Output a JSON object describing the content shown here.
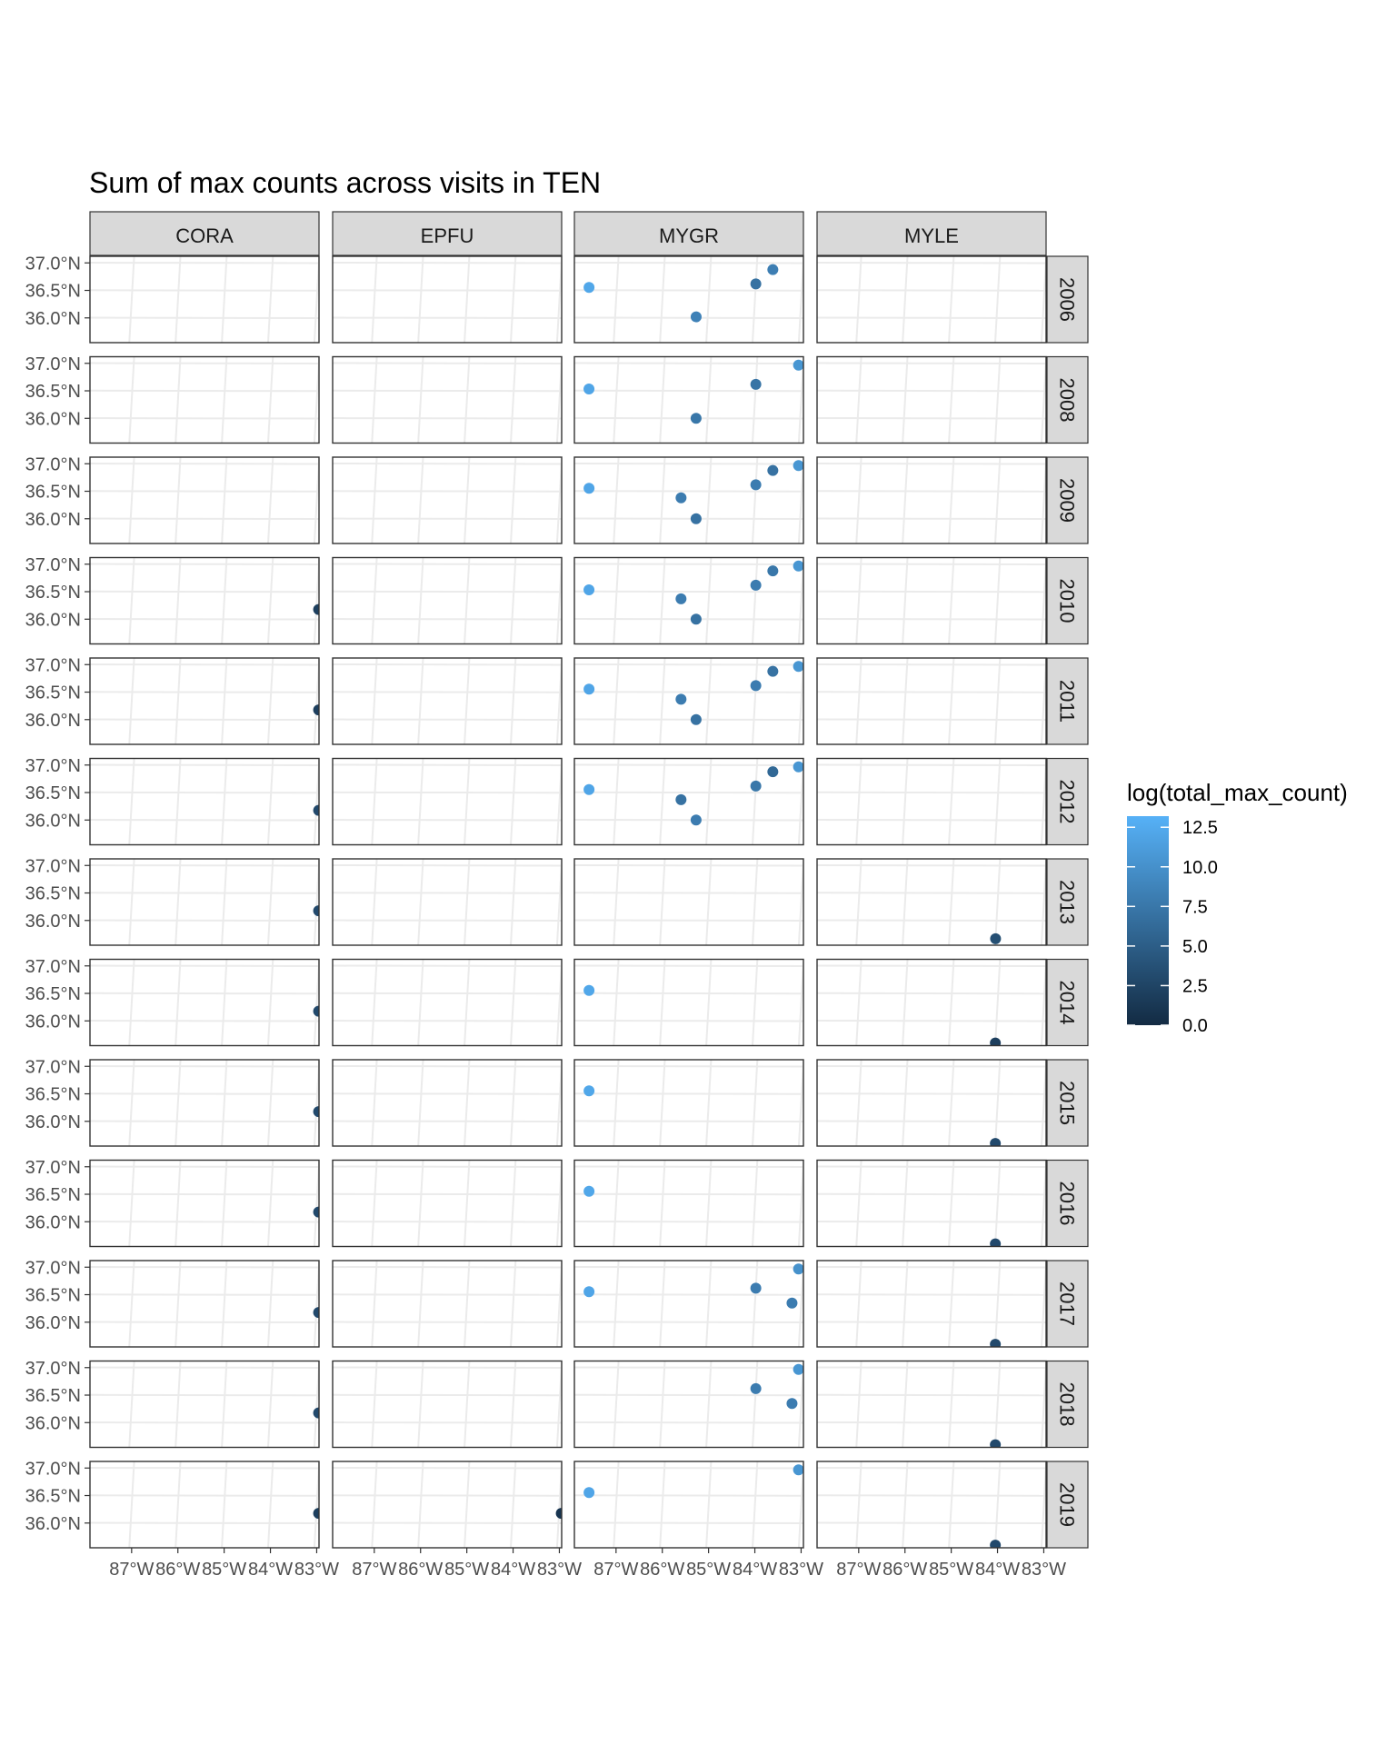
{
  "chart_data": {
    "type": "scatter",
    "title": "Sum of max counts across visits in TEN",
    "facet_columns": [
      "CORA",
      "EPFU",
      "MYGR",
      "MYLE"
    ],
    "facet_rows": [
      "2006",
      "2008",
      "2009",
      "2010",
      "2011",
      "2012",
      "2013",
      "2014",
      "2015",
      "2016",
      "2017",
      "2018",
      "2019"
    ],
    "x_ticks": [
      {
        "value": -87,
        "label": "87°W"
      },
      {
        "value": -86,
        "label": "86°W"
      },
      {
        "value": -85,
        "label": "85°W"
      },
      {
        "value": -84,
        "label": "84°W"
      },
      {
        "value": -83,
        "label": "83°W"
      }
    ],
    "y_ticks": [
      {
        "value": 37.0,
        "label": "37.0°N"
      },
      {
        "value": 36.5,
        "label": "36.5°N"
      },
      {
        "value": 36.0,
        "label": "36.0°N"
      }
    ],
    "xlim": [
      -87.9,
      -82.95
    ],
    "ylim": [
      35.55,
      37.12
    ],
    "legend": {
      "title": "log(total_max_count)",
      "position": "right",
      "range": [
        0,
        13.2
      ],
      "ticks": [
        {
          "value": 12.5,
          "label": "12.5"
        },
        {
          "value": 10.0,
          "label": "10.0"
        },
        {
          "value": 7.5,
          "label": "7.5"
        },
        {
          "value": 5.0,
          "label": "5.0"
        },
        {
          "value": 2.5,
          "label": "2.5"
        },
        {
          "value": 0.0,
          "label": "0.0"
        }
      ],
      "color_low": "#132B43",
      "color_high": "#56B1F7"
    },
    "grid": true,
    "points": [
      {
        "species": "MYGR",
        "year": "2006",
        "lon": -87.6,
        "lat": 36.55,
        "value": 12.2
      },
      {
        "species": "MYGR",
        "year": "2006",
        "lon": -85.25,
        "lat": 36.02,
        "value": 8.5
      },
      {
        "species": "MYGR",
        "year": "2006",
        "lon": -84.0,
        "lat": 36.62,
        "value": 7.0
      },
      {
        "species": "MYGR",
        "year": "2006",
        "lon": -83.65,
        "lat": 36.88,
        "value": 8.2
      },
      {
        "species": "MYGR",
        "year": "2008",
        "lon": -87.6,
        "lat": 36.53,
        "value": 12.0
      },
      {
        "species": "MYGR",
        "year": "2008",
        "lon": -85.25,
        "lat": 36.0,
        "value": 7.5
      },
      {
        "species": "MYGR",
        "year": "2008",
        "lon": -84.0,
        "lat": 36.62,
        "value": 7.2
      },
      {
        "species": "MYGR",
        "year": "2008",
        "lon": -83.1,
        "lat": 36.97,
        "value": 10.5
      },
      {
        "species": "MYGR",
        "year": "2009",
        "lon": -87.6,
        "lat": 36.55,
        "value": 12.0
      },
      {
        "species": "MYGR",
        "year": "2009",
        "lon": -85.6,
        "lat": 36.38,
        "value": 8.0
      },
      {
        "species": "MYGR",
        "year": "2009",
        "lon": -85.25,
        "lat": 36.0,
        "value": 7.0
      },
      {
        "species": "MYGR",
        "year": "2009",
        "lon": -84.0,
        "lat": 36.62,
        "value": 8.0
      },
      {
        "species": "MYGR",
        "year": "2009",
        "lon": -83.65,
        "lat": 36.88,
        "value": 7.0
      },
      {
        "species": "MYGR",
        "year": "2009",
        "lon": -83.1,
        "lat": 36.97,
        "value": 10.5
      },
      {
        "species": "CORA",
        "year": "2010",
        "lon": -82.95,
        "lat": 36.18,
        "value": 2.0
      },
      {
        "species": "MYGR",
        "year": "2010",
        "lon": -87.6,
        "lat": 36.53,
        "value": 12.0
      },
      {
        "species": "MYGR",
        "year": "2010",
        "lon": -85.6,
        "lat": 36.37,
        "value": 8.0
      },
      {
        "species": "MYGR",
        "year": "2010",
        "lon": -85.25,
        "lat": 36.0,
        "value": 7.0
      },
      {
        "species": "MYGR",
        "year": "2010",
        "lon": -84.0,
        "lat": 36.62,
        "value": 8.0
      },
      {
        "species": "MYGR",
        "year": "2010",
        "lon": -83.65,
        "lat": 36.88,
        "value": 7.5
      },
      {
        "species": "MYGR",
        "year": "2010",
        "lon": -83.1,
        "lat": 36.97,
        "value": 10.5
      },
      {
        "species": "CORA",
        "year": "2011",
        "lon": -82.95,
        "lat": 36.18,
        "value": 2.0
      },
      {
        "species": "MYGR",
        "year": "2011",
        "lon": -87.6,
        "lat": 36.55,
        "value": 12.0
      },
      {
        "species": "MYGR",
        "year": "2011",
        "lon": -85.6,
        "lat": 36.37,
        "value": 8.0
      },
      {
        "species": "MYGR",
        "year": "2011",
        "lon": -85.25,
        "lat": 36.0,
        "value": 7.0
      },
      {
        "species": "MYGR",
        "year": "2011",
        "lon": -84.0,
        "lat": 36.62,
        "value": 8.0
      },
      {
        "species": "MYGR",
        "year": "2011",
        "lon": -83.65,
        "lat": 36.88,
        "value": 7.0
      },
      {
        "species": "MYGR",
        "year": "2011",
        "lon": -83.1,
        "lat": 36.97,
        "value": 10.5
      },
      {
        "species": "CORA",
        "year": "2012",
        "lon": -82.95,
        "lat": 36.18,
        "value": 3.0
      },
      {
        "species": "MYGR",
        "year": "2012",
        "lon": -87.6,
        "lat": 36.55,
        "value": 12.0
      },
      {
        "species": "MYGR",
        "year": "2012",
        "lon": -85.6,
        "lat": 36.37,
        "value": 7.0
      },
      {
        "species": "MYGR",
        "year": "2012",
        "lon": -85.25,
        "lat": 36.0,
        "value": 8.0
      },
      {
        "species": "MYGR",
        "year": "2012",
        "lon": -84.0,
        "lat": 36.62,
        "value": 7.5
      },
      {
        "species": "MYGR",
        "year": "2012",
        "lon": -83.65,
        "lat": 36.88,
        "value": 6.0
      },
      {
        "species": "MYGR",
        "year": "2012",
        "lon": -83.1,
        "lat": 36.97,
        "value": 10.5
      },
      {
        "species": "CORA",
        "year": "2013",
        "lon": -82.95,
        "lat": 36.18,
        "value": 3.0
      },
      {
        "species": "MYLE",
        "year": "2013",
        "lon": -84.0,
        "lat": 35.67,
        "value": 3.5
      },
      {
        "species": "CORA",
        "year": "2014",
        "lon": -82.95,
        "lat": 36.18,
        "value": 3.0
      },
      {
        "species": "MYGR",
        "year": "2014",
        "lon": -87.6,
        "lat": 36.55,
        "value": 12.2
      },
      {
        "species": "MYLE",
        "year": "2014",
        "lon": -84.0,
        "lat": 35.6,
        "value": 2.0
      },
      {
        "species": "CORA",
        "year": "2015",
        "lon": -82.95,
        "lat": 36.18,
        "value": 3.0
      },
      {
        "species": "MYGR",
        "year": "2015",
        "lon": -87.6,
        "lat": 36.55,
        "value": 12.2
      },
      {
        "species": "MYLE",
        "year": "2015",
        "lon": -84.0,
        "lat": 35.6,
        "value": 3.0
      },
      {
        "species": "CORA",
        "year": "2016",
        "lon": -82.95,
        "lat": 36.18,
        "value": 3.0
      },
      {
        "species": "MYGR",
        "year": "2016",
        "lon": -87.6,
        "lat": 36.55,
        "value": 12.2
      },
      {
        "species": "MYLE",
        "year": "2016",
        "lon": -84.0,
        "lat": 35.6,
        "value": 3.0
      },
      {
        "species": "CORA",
        "year": "2017",
        "lon": -82.95,
        "lat": 36.18,
        "value": 3.0
      },
      {
        "species": "MYGR",
        "year": "2017",
        "lon": -87.6,
        "lat": 36.55,
        "value": 12.0
      },
      {
        "species": "MYGR",
        "year": "2017",
        "lon": -84.0,
        "lat": 36.62,
        "value": 8.0
      },
      {
        "species": "MYGR",
        "year": "2017",
        "lon": -83.2,
        "lat": 36.35,
        "value": 8.0
      },
      {
        "species": "MYGR",
        "year": "2017",
        "lon": -83.1,
        "lat": 36.97,
        "value": 10.0
      },
      {
        "species": "MYLE",
        "year": "2017",
        "lon": -84.0,
        "lat": 35.6,
        "value": 3.0
      },
      {
        "species": "CORA",
        "year": "2018",
        "lon": -82.95,
        "lat": 36.18,
        "value": 3.0
      },
      {
        "species": "MYGR",
        "year": "2018",
        "lon": -84.0,
        "lat": 36.62,
        "value": 8.0
      },
      {
        "species": "MYGR",
        "year": "2018",
        "lon": -83.2,
        "lat": 36.35,
        "value": 8.0
      },
      {
        "species": "MYGR",
        "year": "2018",
        "lon": -83.1,
        "lat": 36.97,
        "value": 10.5
      },
      {
        "species": "MYLE",
        "year": "2018",
        "lon": -84.0,
        "lat": 35.6,
        "value": 3.0
      },
      {
        "species": "CORA",
        "year": "2019",
        "lon": -82.95,
        "lat": 36.18,
        "value": 2.0
      },
      {
        "species": "EPFU",
        "year": "2019",
        "lon": -82.95,
        "lat": 36.18,
        "value": 1.0
      },
      {
        "species": "MYGR",
        "year": "2019",
        "lon": -87.6,
        "lat": 36.55,
        "value": 12.0
      },
      {
        "species": "MYGR",
        "year": "2019",
        "lon": -83.1,
        "lat": 36.97,
        "value": 10.5
      },
      {
        "species": "MYLE",
        "year": "2019",
        "lon": -84.0,
        "lat": 35.6,
        "value": 3.0
      }
    ]
  }
}
